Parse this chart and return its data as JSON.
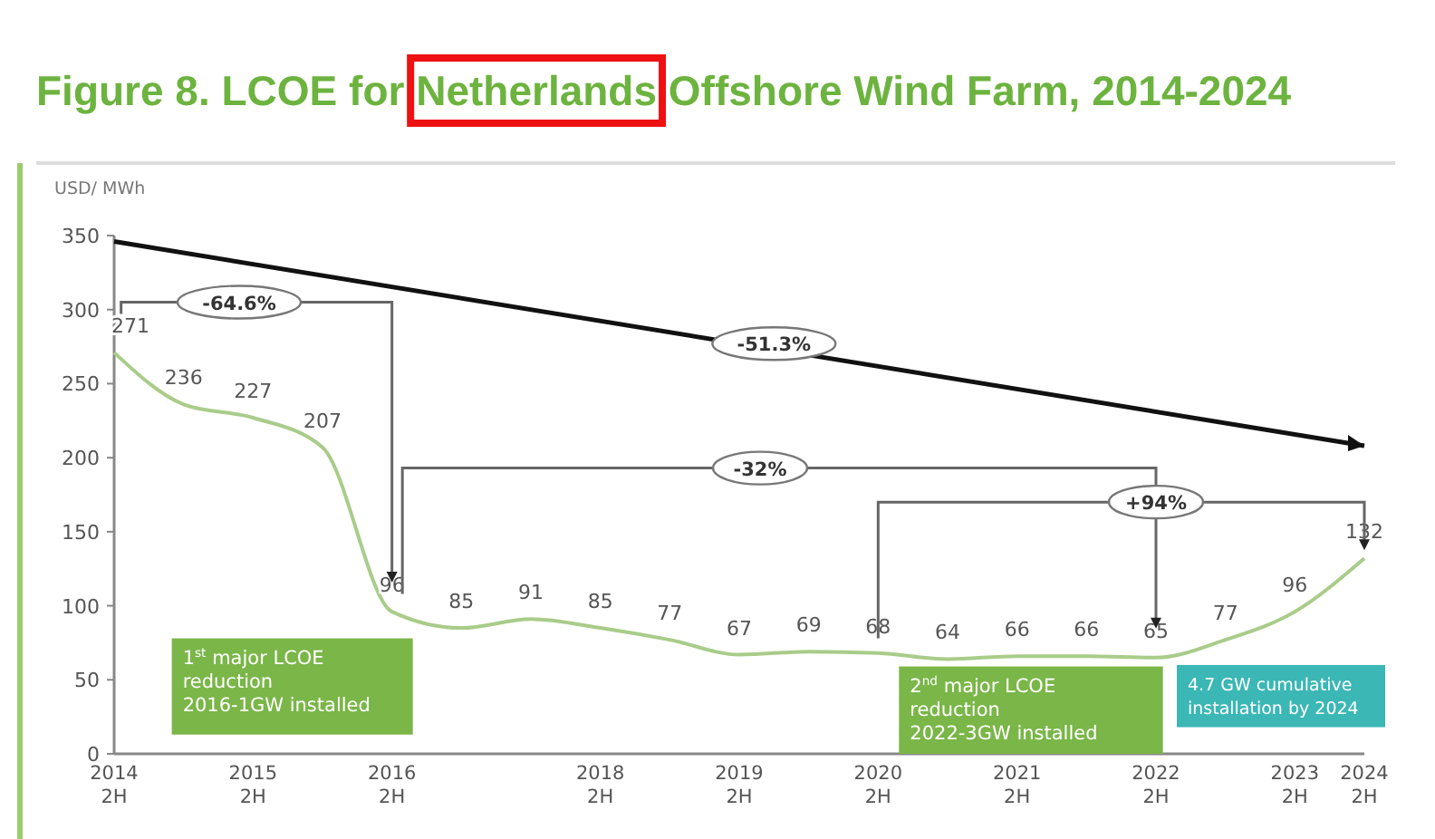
{
  "chart_data": {
    "type": "line",
    "title": "Figure 8. LCOE for Netherlands Offshore Wind Farm, 2014-2024",
    "ylabel": "USD/ MWh",
    "categories": [
      "2014 2H",
      null,
      "2015 2H",
      null,
      "2016 2H",
      null,
      null,
      "2018 2H",
      null,
      "2019 2H",
      null,
      "2020 2H",
      null,
      "2021 2H",
      null,
      "2022 2H",
      null,
      "2023 2H",
      "2024 2H"
    ],
    "series": [
      {
        "color": "#a9cc8a",
        "values": [
          271,
          236,
          227,
          207,
          96,
          85,
          91,
          85,
          77,
          67,
          69,
          68,
          64,
          66,
          66,
          65,
          77,
          96,
          132
        ]
      }
    ],
    "ylim": [
      0,
      350
    ],
    "yticks": [
      0,
      50,
      100,
      150,
      200,
      250,
      300,
      350
    ],
    "data_labels": true,
    "grid": false,
    "marker": "none",
    "annotations": [
      "-51.3%",
      "-64.6%",
      "-32%",
      "+94%",
      "1$^{st}$ major LCOE\nreduction\n2016-1GW installed",
      "2$^{nd}$ major LCOE\nreduction\n2022-3GW installed",
      "4.7 GW cumulative\ninstallation by 2024"
    ]
  }
}
